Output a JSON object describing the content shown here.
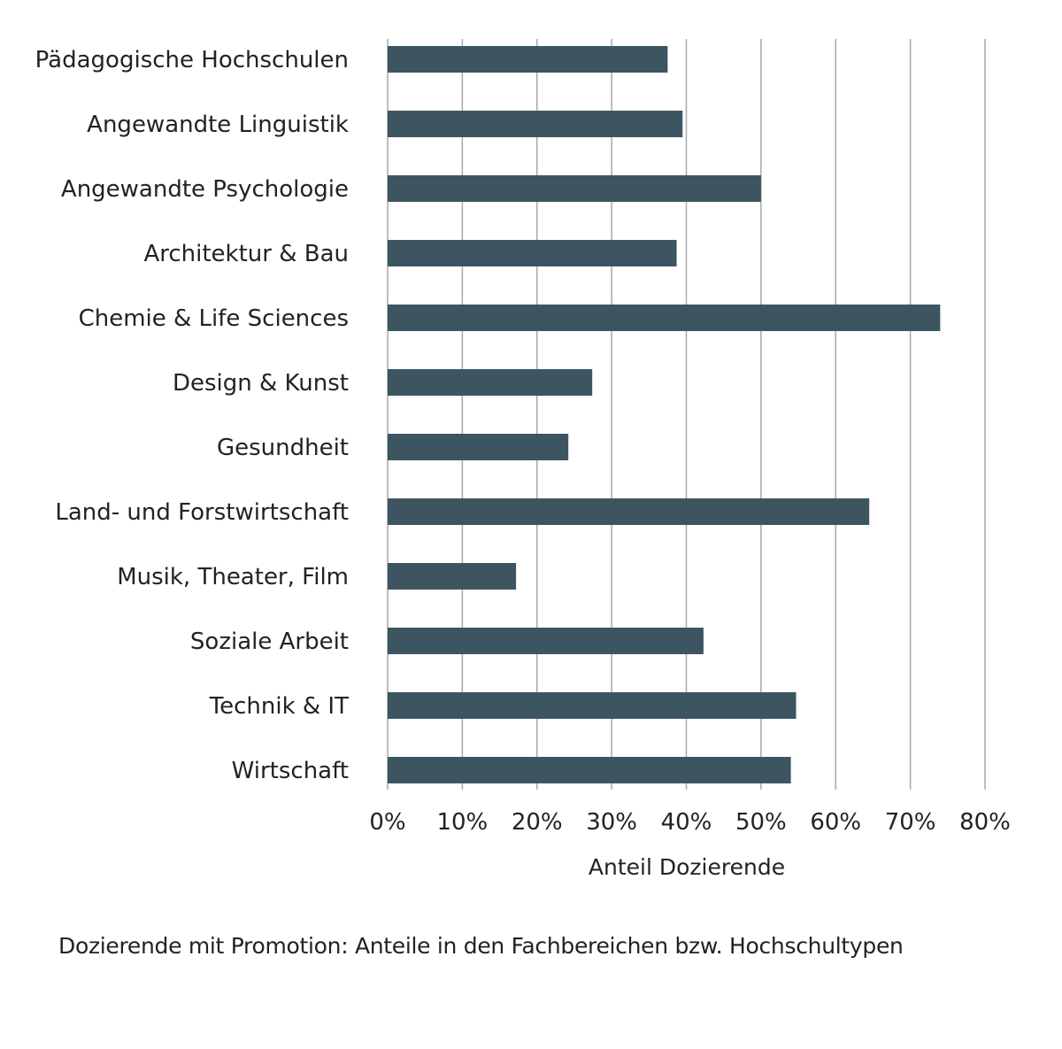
{
  "caption": "Dozierende mit Promotion: Anteile in den Fachbereichen bzw. Hochschultypen",
  "colors": {
    "bar": "#3d5561",
    "grid": "#a9a9a9",
    "text": "#222222"
  },
  "chart_data": {
    "type": "bar",
    "orientation": "horizontal",
    "title": "",
    "xlabel": "Anteil Dozierende",
    "ylabel": "",
    "xlim": [
      0,
      80
    ],
    "xticks": [
      0,
      10,
      20,
      30,
      40,
      50,
      60,
      70,
      80
    ],
    "xtick_labels": [
      "0%",
      "10%",
      "20%",
      "30%",
      "40%",
      "50%",
      "60%",
      "70%",
      "80%"
    ],
    "grid": "vertical",
    "categories": [
      "Pädagogische Hochschulen",
      "Angewandte Linguistik",
      "Angewandte Psychologie",
      "Architektur & Bau",
      "Chemie & Life Sciences",
      "Design & Kunst",
      "Gesundheit",
      "Land- und Forstwirtschaft",
      "Musik, Theater, Film",
      "Soziale Arbeit",
      "Technik & IT",
      "Wirtschaft"
    ],
    "values": [
      37.5,
      39.5,
      50,
      38.7,
      74,
      27.4,
      24.2,
      64.5,
      17.2,
      42.3,
      54.7,
      54
    ]
  }
}
